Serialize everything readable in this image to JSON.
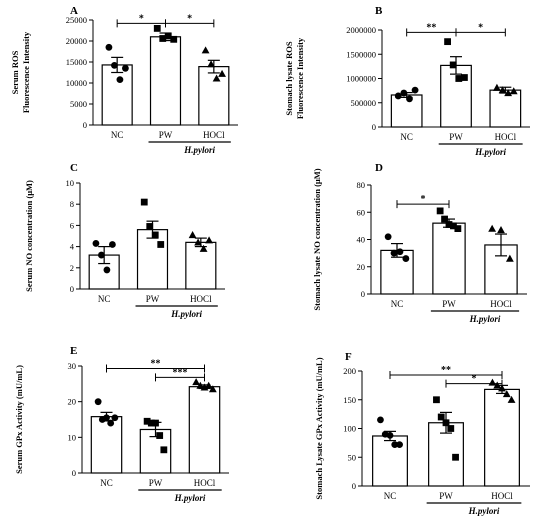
{
  "figure_group_label": "H.pylori",
  "chart_data": [
    {
      "panel": "A",
      "type": "bar",
      "ylabel": [
        "Serum ROS",
        "Fluorescence Intensity"
      ],
      "categories": [
        "NC",
        "PW",
        "HOCl"
      ],
      "values": [
        14300,
        21000,
        13900
      ],
      "errors": [
        1800,
        900,
        1500
      ],
      "points": [
        [
          18500,
          14200,
          10800,
          13500
        ],
        [
          23000,
          20600,
          21200,
          20400
        ],
        [
          17800,
          14500,
          11100,
          12200
        ]
      ],
      "markers": [
        "circle",
        "square",
        "triangle"
      ],
      "ylim": [
        0,
        25000
      ],
      "yticks": [
        0,
        5000,
        10000,
        15000,
        20000,
        25000
      ],
      "ytick_labels": [
        "0",
        "5000",
        "10000",
        "15000",
        "20000",
        "25000"
      ],
      "significance": [
        {
          "from": 0,
          "to": 1,
          "label": "*",
          "y": 24200
        },
        {
          "from": 1,
          "to": 2,
          "label": "*",
          "y": 24200
        }
      ]
    },
    {
      "panel": "B",
      "type": "bar",
      "ylabel": [
        "Stomach lysate ROS",
        "Fluorescence Intensity"
      ],
      "categories": [
        "NC",
        "PW",
        "HOCl"
      ],
      "values": [
        660000,
        1270000,
        760000
      ],
      "errors": [
        50000,
        180000,
        60000
      ],
      "points": [
        [
          640000,
          700000,
          580000,
          760000
        ],
        [
          1760000,
          1280000,
          1000000,
          1020000
        ],
        [
          810000,
          760000,
          700000,
          740000
        ]
      ],
      "markers": [
        "circle",
        "square",
        "triangle"
      ],
      "ylim": [
        0,
        2000000
      ],
      "yticks": [
        0,
        500000,
        1000000,
        1500000,
        2000000
      ],
      "ytick_labels": [
        "0",
        "500000",
        "1000000",
        "1500000",
        "2000000"
      ],
      "significance": [
        {
          "from": 0,
          "to": 1,
          "label": "**",
          "y": 1950000
        },
        {
          "from": 1,
          "to": 2,
          "label": "*",
          "y": 1950000
        }
      ]
    },
    {
      "panel": "C",
      "type": "bar",
      "ylabel": [
        "Serum NO concentration (μM)"
      ],
      "categories": [
        "NC",
        "PW",
        "HOCl"
      ],
      "values": [
        3.2,
        5.6,
        4.4
      ],
      "errors": [
        0.8,
        0.8,
        0.4
      ],
      "points": [
        [
          4.3,
          3.2,
          1.8,
          4.2
        ],
        [
          8.2,
          5.9,
          5.1,
          4.2
        ],
        [
          5.1,
          4.4,
          3.8,
          4.6
        ]
      ],
      "markers": [
        "circle",
        "square",
        "triangle"
      ],
      "ylim": [
        0,
        10
      ],
      "yticks": [
        0,
        2,
        4,
        6,
        8,
        10
      ],
      "ytick_labels": [
        "0",
        "2",
        "4",
        "6",
        "8",
        "10"
      ],
      "significance": []
    },
    {
      "panel": "D",
      "type": "bar",
      "ylabel": [
        "Stomach lysate NO concentration (μM)"
      ],
      "categories": [
        "NC",
        "PW",
        "HOCl"
      ],
      "values": [
        32,
        52,
        36
      ],
      "errors": [
        5,
        3,
        8
      ],
      "points": [
        [
          42,
          30,
          31,
          26
        ],
        [
          61,
          55,
          51,
          50,
          48
        ],
        [
          48,
          47,
          26
        ]
      ],
      "markers": [
        "circle",
        "square",
        "triangle"
      ],
      "ylim": [
        0,
        80
      ],
      "yticks": [
        0,
        20,
        40,
        60,
        80
      ],
      "ytick_labels": [
        "0",
        "20",
        "40",
        "60",
        "80"
      ],
      "significance": [
        {
          "from": 0,
          "to": 1,
          "label": "*",
          "y": 66
        }
      ]
    },
    {
      "panel": "E",
      "type": "bar",
      "ylabel": [
        "Serum GPx Activity (mU/mL)"
      ],
      "categories": [
        "NC",
        "PW",
        "HOCl"
      ],
      "values": [
        15.8,
        12.2,
        24.2
      ],
      "errors": [
        1.2,
        2.0,
        0.5
      ],
      "points": [
        [
          20,
          15,
          15.5,
          14,
          15.5
        ],
        [
          14.5,
          14,
          14,
          10.5,
          6.5
        ],
        [
          25.5,
          24.5,
          24,
          24.5,
          23.5
        ]
      ],
      "markers": [
        "circle",
        "square",
        "triangle"
      ],
      "ylim": [
        0,
        30
      ],
      "yticks": [
        0,
        10,
        20,
        30
      ],
      "ytick_labels": [
        "0",
        "10",
        "20",
        "30"
      ],
      "significance": [
        {
          "from": 0,
          "to": 2,
          "label": "**",
          "y": 29.3
        },
        {
          "from": 1,
          "to": 2,
          "label": "***",
          "y": 26.8
        }
      ]
    },
    {
      "panel": "F",
      "type": "bar",
      "ylabel": [
        "Stomach Lysate GPx Activity (mU/mL)"
      ],
      "categories": [
        "NC",
        "PW",
        "HOCl"
      ],
      "values": [
        87,
        110,
        168
      ],
      "errors": [
        8,
        18,
        7
      ],
      "points": [
        [
          115,
          90,
          88,
          72,
          72
        ],
        [
          150,
          120,
          110,
          100,
          50
        ],
        [
          180,
          175,
          170,
          160,
          150
        ]
      ],
      "markers": [
        "circle",
        "square",
        "triangle"
      ],
      "ylim": [
        0,
        200
      ],
      "yticks": [
        0,
        50,
        100,
        150,
        200
      ],
      "ytick_labels": [
        "0",
        "50",
        "100",
        "150",
        "200"
      ],
      "significance": [
        {
          "from": 0,
          "to": 2,
          "label": "**",
          "y": 193
        },
        {
          "from": 1,
          "to": 2,
          "label": "*",
          "y": 178
        }
      ]
    }
  ]
}
